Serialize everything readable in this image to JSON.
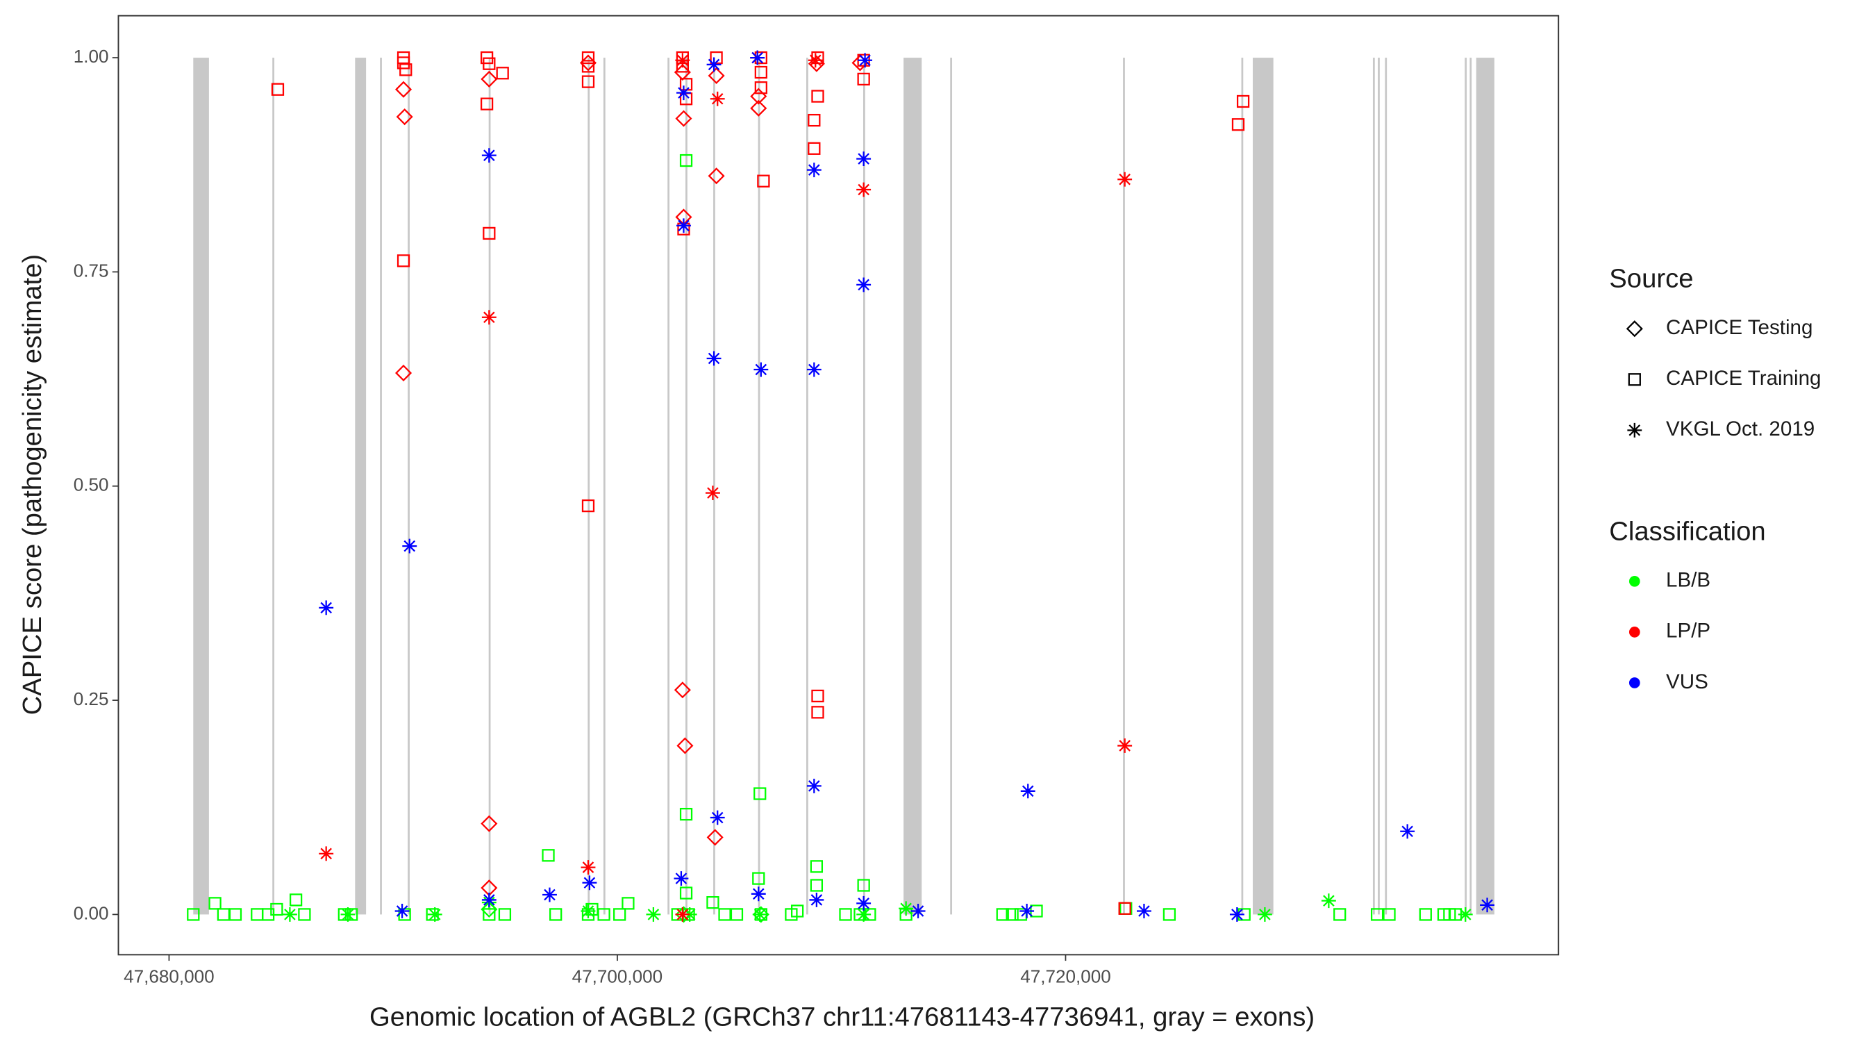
{
  "chart_data": {
    "type": "scatter",
    "xlabel": "Genomic location of AGBL2 (GRCh37 chr11:47681143-47736941, gray = exons)",
    "ylabel": "CAPICE score (pathogenicity estimate)",
    "xlim": [
      47677740,
      47741990
    ],
    "ylim": [
      -0.047,
      1.049
    ],
    "xticks": [
      {
        "value": 47680000,
        "label": "47,680,000"
      },
      {
        "value": 47700000,
        "label": "47,700,000"
      },
      {
        "value": 47720000,
        "label": "47,720,000"
      }
    ],
    "yticks": [
      {
        "value": 0,
        "label": "0.00"
      },
      {
        "value": 0.25,
        "label": "0.25"
      },
      {
        "value": 0.5,
        "label": "0.50"
      },
      {
        "value": 0.75,
        "label": "0.75"
      },
      {
        "value": 1,
        "label": "1.00"
      }
    ],
    "grid": false,
    "exon_color": "#c8c8c8",
    "exons": [
      [
        47681080,
        47681780
      ],
      [
        47684610,
        47684670
      ],
      [
        47688300,
        47688790
      ],
      [
        47689410,
        47689460
      ],
      [
        47690650,
        47690700
      ],
      [
        47694260,
        47694310
      ],
      [
        47698680,
        47698730
      ],
      [
        47699380,
        47699430
      ],
      [
        47702240,
        47702290
      ],
      [
        47703040,
        47703090
      ],
      [
        47704280,
        47704330
      ],
      [
        47706280,
        47706330
      ],
      [
        47708430,
        47708480
      ],
      [
        47710970,
        47711020
      ],
      [
        47712770,
        47713580
      ],
      [
        47714850,
        47714900
      ],
      [
        47722560,
        47722610
      ],
      [
        47727840,
        47727890
      ],
      [
        47728350,
        47729270
      ],
      [
        47733710,
        47733760
      ],
      [
        47733930,
        47733980
      ],
      [
        47734250,
        47734300
      ],
      [
        47737810,
        47737860
      ],
      [
        47738030,
        47738080
      ],
      [
        47738320,
        47739130
      ]
    ],
    "shape_legend": {
      "title": "Source",
      "entries": [
        {
          "name": "CAPICE Testing",
          "shape": "diamond"
        },
        {
          "name": "CAPICE Training",
          "shape": "square"
        },
        {
          "name": "VKGL Oct. 2019",
          "shape": "asterisk"
        }
      ]
    },
    "color_legend": {
      "title": "Classification",
      "entries": [
        {
          "name": "LB/B",
          "color": "#00ff00"
        },
        {
          "name": "LP/P",
          "color": "#ff0000"
        },
        {
          "name": "VUS",
          "color": "#0000ff"
        }
      ]
    },
    "series": [
      {
        "shape": 1,
        "color": 0,
        "x": [
          47681080,
          47682050,
          47682430,
          47682960,
          47683930,
          47684420,
          47684800,
          47685660,
          47686040,
          47687820,
          47688140,
          47690510,
          47691750,
          47694280,
          47694980,
          47696920,
          47697250,
          47698700,
          47698870,
          47699400,
          47700100,
          47700480,
          47702690,
          47703070,
          47703070,
          47703070,
          47703180,
          47704260,
          47704790,
          47705330,
          47706300,
          47706360,
          47706410,
          47707760,
          47708030,
          47708890,
          47708890,
          47710180,
          47710830,
          47710990,
          47711260,
          47712880,
          47717190,
          47717620,
          47718000,
          47718700,
          47722690,
          47724630,
          47727970,
          47732230,
          47733900,
          47734440,
          47736060,
          47736870,
          47737130,
          47737400
        ],
        "y": [
          0,
          0.013,
          0,
          0,
          0,
          0,
          0.006,
          0.017,
          0,
          0,
          0,
          0,
          0,
          0,
          0,
          0.069,
          0,
          0,
          0.006,
          0,
          0,
          0.013,
          0,
          0.117,
          0.88,
          0.025,
          0,
          0.014,
          0,
          0,
          0.042,
          0.141,
          0,
          0,
          0.004,
          0.056,
          0.034,
          0,
          0,
          0.034,
          0,
          0,
          0,
          0,
          0,
          0.004,
          0.007,
          0,
          0,
          0,
          0,
          0,
          0,
          0,
          0,
          0
        ]
      },
      {
        "shape": 2,
        "color": 0,
        "x": [
          47685390,
          47687980,
          47691860,
          47694280,
          47698700,
          47701610,
          47703230,
          47706360,
          47710990,
          47712880,
          47728890,
          47731740,
          47737840
        ],
        "y": [
          0,
          0,
          0,
          0.014,
          0.004,
          0,
          0,
          0,
          0,
          0.007,
          0,
          0.016,
          0
        ]
      },
      {
        "shape": 0,
        "color": 0,
        "x": [
          47694280,
          47702960,
          47706410
        ],
        "y": [
          0.006,
          0,
          0
        ]
      },
      {
        "shape": 1,
        "color": 1,
        "x": [
          47690460,
          47690460,
          47690560,
          47694180,
          47694280,
          47694880,
          47698700,
          47698700,
          47702910,
          47702910,
          47703070,
          47703070,
          47704420,
          47706410,
          47706410,
          47706410,
          47708940,
          47708940,
          47710990,
          47710990,
          47684850,
          47690460,
          47694280,
          47694180,
          47698700,
          47698700,
          47706520,
          47708780,
          47708780,
          47708940,
          47708940,
          47727920,
          47727700,
          47702960,
          47722640
        ],
        "y": [
          1,
          0.994,
          0.986,
          1,
          0.993,
          0.982,
          1,
          0.99,
          1,
          0.99,
          0.969,
          0.952,
          1,
          1,
          0.983,
          0.965,
          1,
          0.955,
          0.997,
          0.975,
          0.963,
          0.763,
          0.795,
          0.946,
          0.972,
          0.477,
          0.856,
          0.894,
          0.927,
          0.255,
          0.236,
          0.949,
          0.922,
          0.8,
          0.007
        ]
      },
      {
        "shape": 0,
        "color": 1,
        "x": [
          47690460,
          47690510,
          47690460,
          47694280,
          47694280,
          47702960,
          47702960,
          47702910,
          47703020,
          47704420,
          47704360,
          47706300,
          47706300,
          47694280,
          47698700,
          47702910,
          47704420,
          47708890,
          47710830
        ],
        "y": [
          0.963,
          0.931,
          0.632,
          0.106,
          0.031,
          0.929,
          0.814,
          0.262,
          0.197,
          0.862,
          0.09,
          0.941,
          0.955,
          0.975,
          0.994,
          0.983,
          0.979,
          0.993,
          0.994
        ]
      },
      {
        "shape": 2,
        "color": 1,
        "x": [
          47687010,
          47694280,
          47704470,
          47704260,
          47698700,
          47710990,
          47722640,
          47722640,
          47702910,
          47706250,
          47708840,
          47702910
        ],
        "y": [
          0.071,
          0.697,
          0.952,
          0.492,
          0.055,
          0.846,
          0.858,
          0.197,
          0.997,
          1,
          0.997,
          0
        ]
      },
      {
        "shape": 2,
        "color": 2,
        "x": [
          47687010,
          47690730,
          47694280,
          47702960,
          47702960,
          47704310,
          47704470,
          47706410,
          47708780,
          47708780,
          47708780,
          47710990,
          47710990,
          47718320,
          47735250,
          47702850,
          47698760,
          47694280,
          47690400,
          47696980,
          47704310,
          47706300,
          47708890,
          47710990,
          47713420,
          47718270,
          47723500,
          47727650,
          47738810,
          47706250,
          47711050
        ],
        "y": [
          0.358,
          0.43,
          0.886,
          0.959,
          0.804,
          0.649,
          0.113,
          0.636,
          0.636,
          0.869,
          0.15,
          0.882,
          0.735,
          0.144,
          0.097,
          0.042,
          0.037,
          0.017,
          0.004,
          0.023,
          0.992,
          0.024,
          0.017,
          0.013,
          0.004,
          0.004,
          0.004,
          0,
          0.011,
          1,
          0.997
        ]
      }
    ]
  }
}
